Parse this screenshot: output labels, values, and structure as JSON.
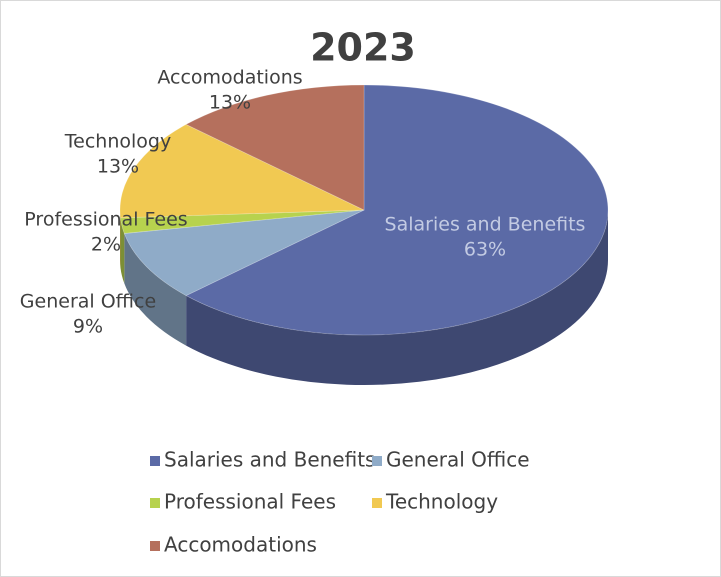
{
  "chart_data": {
    "type": "pie",
    "title": "2023",
    "categories": [
      "Salaries and Benefits",
      "General Office",
      "Professional Fees",
      "Technology",
      "Accomodations"
    ],
    "values": [
      63,
      9,
      2,
      13,
      13
    ],
    "value_labels": [
      "63%",
      "9%",
      "2%",
      "13%",
      "13%"
    ],
    "colors": [
      "#5b6aa6",
      "#8fabc8",
      "#b7d24e",
      "#f1c952",
      "#b5705d"
    ],
    "legend": "bottom"
  }
}
